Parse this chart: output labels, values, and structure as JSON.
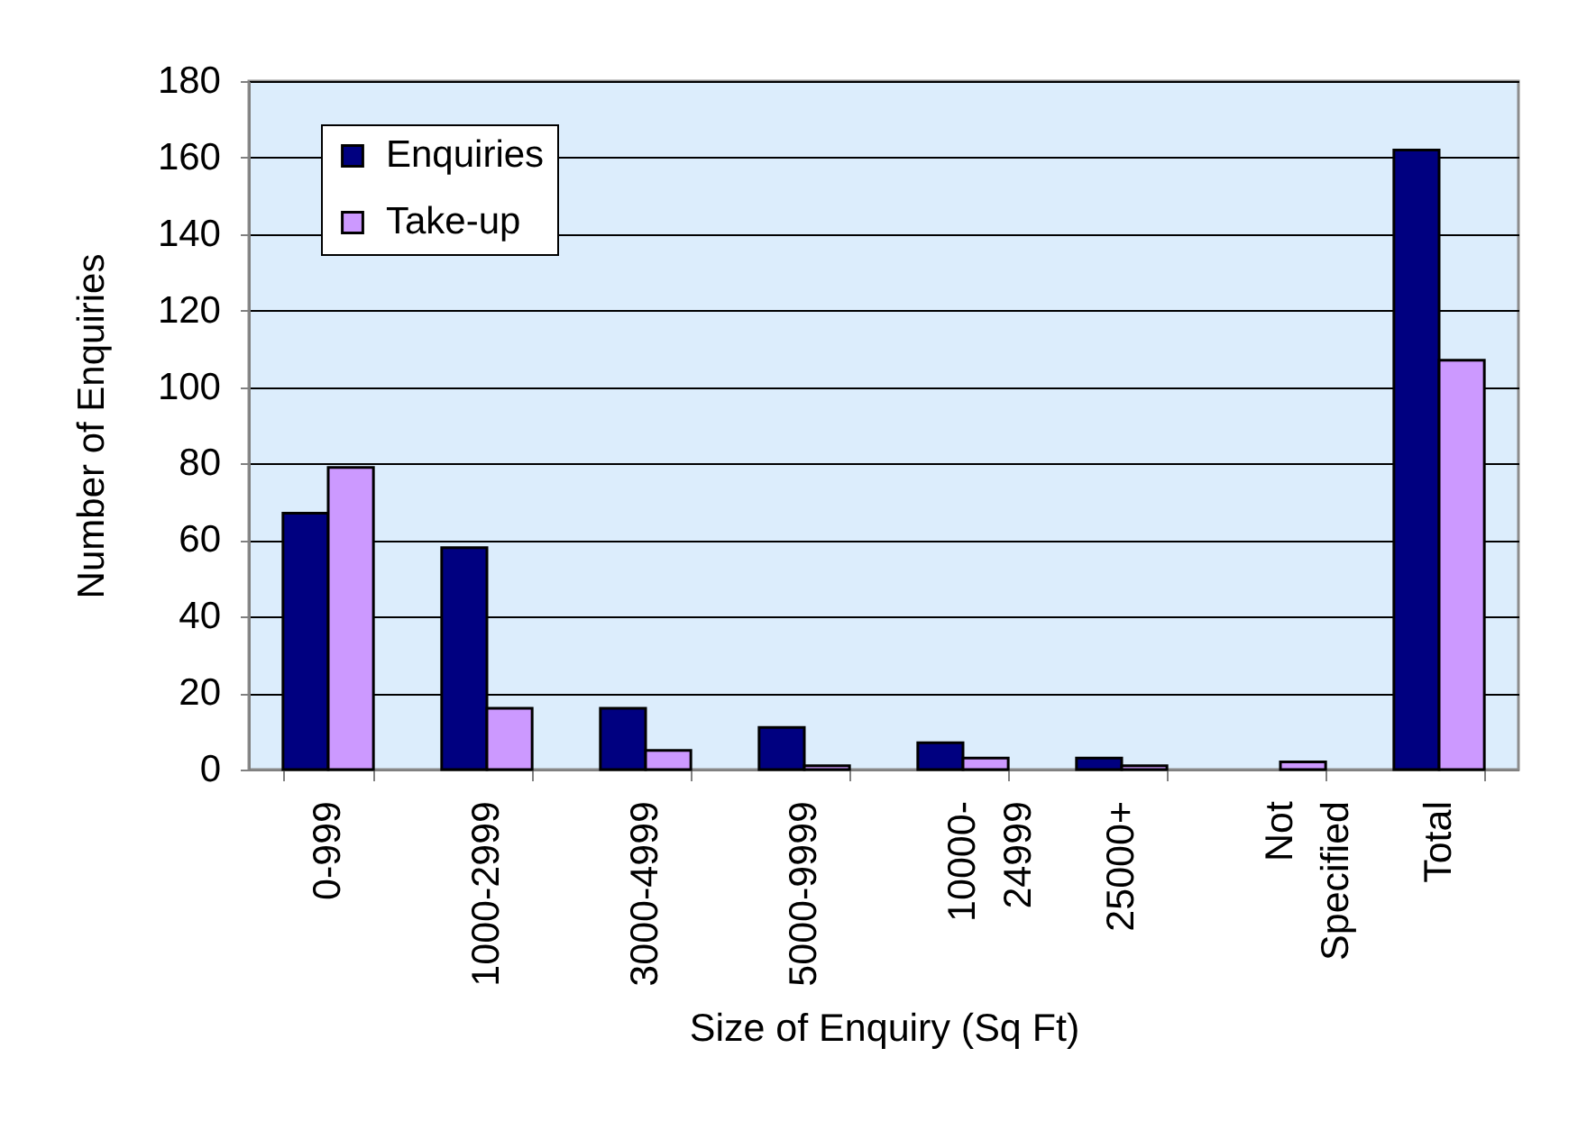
{
  "chart_data": {
    "type": "bar",
    "xlabel": "Size of Enquiry (Sq Ft)",
    "ylabel": "Number of Enquiries",
    "categories": [
      "0-999",
      "1000-2999",
      "3000-4999",
      "5000-9999",
      "10000-\n24999",
      "25000+",
      "Not\nSpecified",
      "Total"
    ],
    "series": [
      {
        "name": "Enquiries",
        "color": "#000080",
        "values": [
          67,
          58,
          16,
          11,
          7,
          3,
          null,
          162
        ]
      },
      {
        "name": "Take-up",
        "color": "#cc99ff",
        "values": [
          79,
          16,
          5,
          1,
          3,
          1,
          2,
          107
        ]
      }
    ],
    "ylim": [
      0,
      180
    ],
    "yticks": [
      0,
      20,
      40,
      60,
      80,
      100,
      120,
      140,
      160,
      180
    ],
    "grid": "y",
    "legend": "top left"
  }
}
